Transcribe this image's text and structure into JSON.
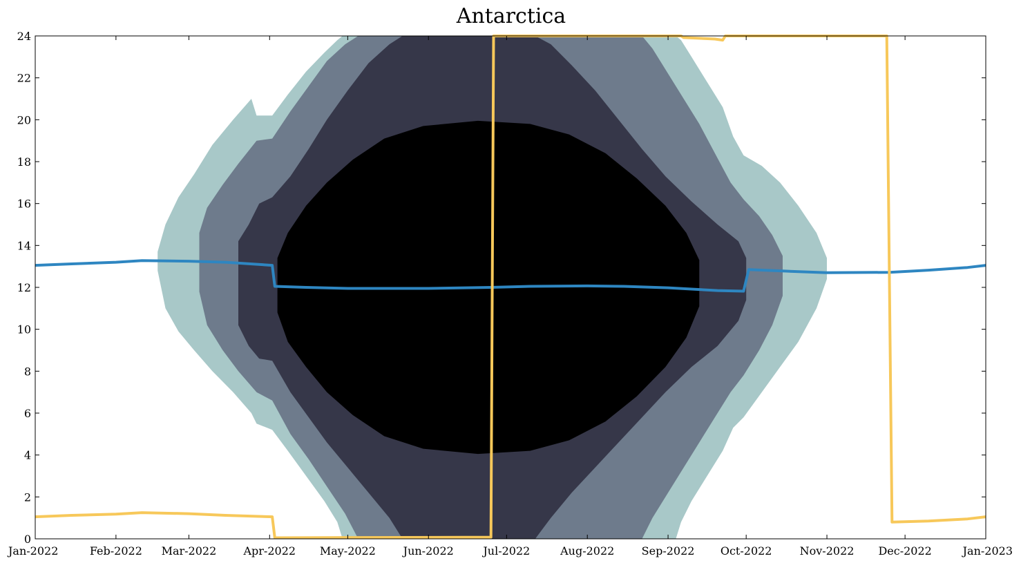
{
  "chart_data": {
    "type": "area",
    "title": "Antarctica",
    "xlabel": "",
    "ylabel": "",
    "xlim": [
      "2022-01-01",
      "2023-01-01"
    ],
    "ylim": [
      0,
      24
    ],
    "grid": false,
    "x_ticks": [
      "Jan-2022",
      "Feb-2022",
      "Mar-2022",
      "Apr-2022",
      "May-2022",
      "Jun-2022",
      "Jul-2022",
      "Aug-2022",
      "Sep-2022",
      "Oct-2022",
      "Nov-2022",
      "Dec-2022",
      "Jan-2023"
    ],
    "y_ticks": [
      0,
      2,
      4,
      6,
      8,
      10,
      12,
      14,
      16,
      18,
      20,
      22,
      24
    ],
    "colors": {
      "night": "#000000",
      "astronomical_twilight": "#363749",
      "nautical_twilight": "#6e7b8c",
      "civil_twilight": "#a8c8c8",
      "solar_noon_line": "#2e86c1",
      "sunset_line": "#f7c85a"
    },
    "bands": [
      {
        "key": "civil",
        "color": "#a8c8c8",
        "points": [
          [
            "2022-02-17",
            12.8,
            13.7
          ],
          [
            "2022-02-20",
            11.0,
            15.0
          ],
          [
            "2022-02-25",
            9.9,
            16.3
          ],
          [
            "2022-03-03",
            9.0,
            17.4
          ],
          [
            "2022-03-10",
            8.0,
            18.8
          ],
          [
            "2022-03-18",
            7.0,
            20.0
          ],
          [
            "2022-03-25",
            6.0,
            21.0
          ],
          [
            "2022-03-27",
            5.5,
            20.2
          ],
          [
            "2022-04-02",
            5.2,
            20.2
          ],
          [
            "2022-04-08",
            4.2,
            21.2
          ],
          [
            "2022-04-15",
            3.0,
            22.3
          ],
          [
            "2022-04-22",
            1.8,
            23.2
          ],
          [
            "2022-04-27",
            0.8,
            23.8
          ],
          [
            "2022-04-29",
            0.0,
            24.0
          ],
          [
            "2022-09-04",
            0.0,
            24.0
          ],
          [
            "2022-09-06",
            0.8,
            23.8
          ],
          [
            "2022-09-10",
            1.8,
            23.0
          ],
          [
            "2022-09-16",
            3.0,
            21.8
          ],
          [
            "2022-09-22",
            4.2,
            20.6
          ],
          [
            "2022-09-26",
            5.3,
            19.2
          ],
          [
            "2022-09-30",
            5.8,
            18.3
          ],
          [
            "2022-10-07",
            7.0,
            17.8
          ],
          [
            "2022-10-14",
            8.2,
            17.0
          ],
          [
            "2022-10-21",
            9.4,
            15.9
          ],
          [
            "2022-10-28",
            11.0,
            14.6
          ],
          [
            "2022-11-01",
            12.4,
            13.4
          ]
        ]
      },
      {
        "key": "nautical",
        "color": "#6e7b8c",
        "points": [
          [
            "2022-03-05",
            11.8,
            14.6
          ],
          [
            "2022-03-08",
            10.2,
            15.8
          ],
          [
            "2022-03-14",
            9.0,
            16.9
          ],
          [
            "2022-03-20",
            8.0,
            17.9
          ],
          [
            "2022-03-27",
            7.0,
            19.0
          ],
          [
            "2022-04-02",
            6.6,
            19.1
          ],
          [
            "2022-04-09",
            5.0,
            20.4
          ],
          [
            "2022-04-16",
            3.8,
            21.6
          ],
          [
            "2022-04-23",
            2.5,
            22.8
          ],
          [
            "2022-04-30",
            1.2,
            23.6
          ],
          [
            "2022-05-05",
            0.0,
            24.0
          ],
          [
            "2022-08-22",
            0.0,
            24.0
          ],
          [
            "2022-08-26",
            1.0,
            23.4
          ],
          [
            "2022-09-01",
            2.2,
            22.2
          ],
          [
            "2022-09-07",
            3.4,
            21.0
          ],
          [
            "2022-09-13",
            4.6,
            19.8
          ],
          [
            "2022-09-19",
            5.8,
            18.4
          ],
          [
            "2022-09-25",
            7.0,
            17.0
          ],
          [
            "2022-09-30",
            7.8,
            16.2
          ],
          [
            "2022-10-06",
            9.0,
            15.4
          ],
          [
            "2022-10-11",
            10.2,
            14.5
          ],
          [
            "2022-10-15",
            11.6,
            13.5
          ]
        ]
      },
      {
        "key": "astronomical",
        "color": "#363749",
        "points": [
          [
            "2022-03-20",
            10.2,
            14.2
          ],
          [
            "2022-03-24",
            9.2,
            15.0
          ],
          [
            "2022-03-28",
            8.6,
            16.0
          ],
          [
            "2022-04-02",
            8.5,
            16.3
          ],
          [
            "2022-04-09",
            7.0,
            17.3
          ],
          [
            "2022-04-16",
            5.8,
            18.6
          ],
          [
            "2022-04-23",
            4.6,
            20.0
          ],
          [
            "2022-05-01",
            3.4,
            21.4
          ],
          [
            "2022-05-09",
            2.2,
            22.7
          ],
          [
            "2022-05-17",
            1.0,
            23.6
          ],
          [
            "2022-05-22",
            0.0,
            24.0
          ],
          [
            "2022-07-12",
            0.0,
            24.0
          ],
          [
            "2022-07-18",
            1.0,
            23.6
          ],
          [
            "2022-07-26",
            2.2,
            22.6
          ],
          [
            "2022-08-04",
            3.4,
            21.4
          ],
          [
            "2022-08-13",
            4.6,
            20.0
          ],
          [
            "2022-08-22",
            5.8,
            18.6
          ],
          [
            "2022-08-31",
            7.0,
            17.3
          ],
          [
            "2022-09-10",
            8.2,
            16.1
          ],
          [
            "2022-09-20",
            9.2,
            15.0
          ],
          [
            "2022-09-28",
            10.4,
            14.2
          ],
          [
            "2022-10-01",
            11.4,
            13.4
          ]
        ]
      },
      {
        "key": "night",
        "color": "#000000",
        "points": [
          [
            "2022-04-04",
            10.8,
            13.4
          ],
          [
            "2022-04-08",
            9.4,
            14.6
          ],
          [
            "2022-04-15",
            8.2,
            15.9
          ],
          [
            "2022-04-23",
            7.0,
            17.0
          ],
          [
            "2022-05-03",
            5.9,
            18.1
          ],
          [
            "2022-05-15",
            4.9,
            19.1
          ],
          [
            "2022-05-30",
            4.3,
            19.7
          ],
          [
            "2022-06-20",
            4.05,
            19.95
          ],
          [
            "2022-07-10",
            4.2,
            19.8
          ],
          [
            "2022-07-25",
            4.7,
            19.3
          ],
          [
            "2022-08-08",
            5.6,
            18.4
          ],
          [
            "2022-08-20",
            6.8,
            17.2
          ],
          [
            "2022-08-31",
            8.2,
            15.9
          ],
          [
            "2022-09-08",
            9.6,
            14.6
          ],
          [
            "2022-09-13",
            11.1,
            13.3
          ]
        ]
      }
    ],
    "series": [
      {
        "key": "noon",
        "color": "#2e86c1",
        "points": [
          [
            "2022-01-01",
            13.05
          ],
          [
            "2022-01-15",
            13.12
          ],
          [
            "2022-02-01",
            13.2
          ],
          [
            "2022-02-11",
            13.28
          ],
          [
            "2022-03-01",
            13.25
          ],
          [
            "2022-03-15",
            13.2
          ],
          [
            "2022-04-02",
            13.05
          ],
          [
            "2022-04-03",
            12.05
          ],
          [
            "2022-04-15",
            12.0
          ],
          [
            "2022-05-01",
            11.95
          ],
          [
            "2022-06-01",
            11.95
          ],
          [
            "2022-06-25",
            12.0
          ],
          [
            "2022-07-10",
            12.05
          ],
          [
            "2022-08-01",
            12.07
          ],
          [
            "2022-08-15",
            12.05
          ],
          [
            "2022-09-01",
            11.98
          ],
          [
            "2022-09-20",
            11.85
          ],
          [
            "2022-09-30",
            11.82
          ],
          [
            "2022-10-02",
            12.85
          ],
          [
            "2022-10-15",
            12.78
          ],
          [
            "2022-11-01",
            12.7
          ],
          [
            "2022-11-25",
            12.72
          ],
          [
            "2022-12-10",
            12.82
          ],
          [
            "2022-12-25",
            12.95
          ],
          [
            "2023-01-01",
            13.05
          ]
        ]
      },
      {
        "key": "sunset",
        "color": "#f7c85a",
        "points": [
          [
            "2022-01-01",
            1.05
          ],
          [
            "2022-01-15",
            1.12
          ],
          [
            "2022-02-01",
            1.18
          ],
          [
            "2022-02-11",
            1.25
          ],
          [
            "2022-03-01",
            1.2
          ],
          [
            "2022-03-15",
            1.12
          ],
          [
            "2022-04-02",
            1.05
          ],
          [
            "2022-04-03",
            0.05
          ],
          [
            "2022-06-25",
            0.08
          ],
          [
            "2022-06-26",
            24.0
          ],
          [
            "2022-09-06",
            24.0
          ],
          [
            "2022-09-07",
            23.92
          ],
          [
            "2022-09-19",
            23.85
          ],
          [
            "2022-09-22",
            23.8
          ],
          [
            "2022-09-23",
            24.0
          ],
          [
            "2022-11-24",
            24.0
          ],
          [
            "2022-11-26",
            0.8
          ],
          [
            "2022-12-10",
            0.85
          ],
          [
            "2022-12-25",
            0.95
          ],
          [
            "2023-01-01",
            1.05
          ]
        ]
      }
    ]
  }
}
